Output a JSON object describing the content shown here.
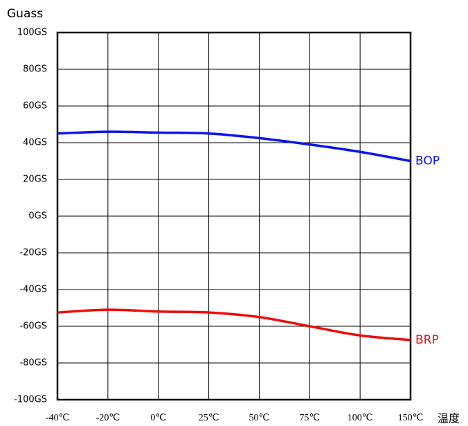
{
  "chart_data": {
    "type": "line",
    "y_label": "Guass",
    "x_label": "温度",
    "categories": [
      "-40℃",
      "-20℃",
      "0℃",
      "25℃",
      "50℃",
      "75℃",
      "100℃",
      "150℃"
    ],
    "series": [
      {
        "name": "BOP",
        "color": "#0a14f0",
        "values": [
          45,
          46,
          45.5,
          45,
          42.5,
          39,
          35,
          30
        ]
      },
      {
        "name": "BRP",
        "color": "#f00a0a",
        "values": [
          -52.5,
          -51,
          -52,
          -52.5,
          -55,
          -60,
          -65,
          -67.5
        ]
      }
    ],
    "ylim": [
      -100,
      100
    ],
    "yticks": [
      {
        "value": -100,
        "label": "-100GS"
      },
      {
        "value": -80,
        "label": "-80GS"
      },
      {
        "value": -60,
        "label": "-60GS"
      },
      {
        "value": -40,
        "label": "-40GS"
      },
      {
        "value": -20,
        "label": "-20GS"
      },
      {
        "value": 0,
        "label": "0GS"
      },
      {
        "value": 20,
        "label": "20GS"
      },
      {
        "value": 40,
        "label": "40GS"
      },
      {
        "value": 60,
        "label": "60GS"
      },
      {
        "value": 80,
        "label": "80GS"
      },
      {
        "value": 100,
        "label": "100GS"
      }
    ],
    "grid": true
  }
}
